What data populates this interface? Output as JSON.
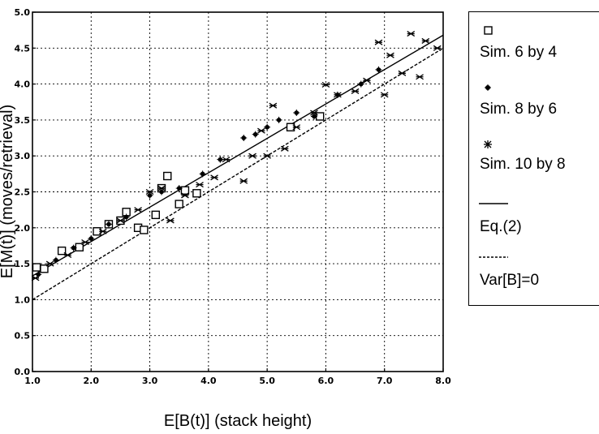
{
  "chart_data": {
    "type": "scatter",
    "xlabel": "E[B(t)] (stack height)",
    "ylabel": "E[M(t)] (moves/retrieval)",
    "xlim": [
      1.0,
      8.0
    ],
    "ylim": [
      0.0,
      5.0
    ],
    "x_ticks": [
      "1.0",
      "2.0",
      "3.0",
      "4.0",
      "5.0",
      "6.0",
      "7.0",
      "8.0"
    ],
    "y_ticks": [
      "0.0",
      "0.5",
      "1.0",
      "1.5",
      "2.0",
      "2.5",
      "3.0",
      "3.5",
      "4.0",
      "4.5",
      "5.0"
    ],
    "grid": true,
    "legend_position": "right",
    "series": [
      {
        "name": "Sim. 6 by 4",
        "marker": "square",
        "points": [
          [
            1.07,
            1.45
          ],
          [
            1.2,
            1.43
          ],
          [
            1.5,
            1.68
          ],
          [
            1.8,
            1.73
          ],
          [
            2.1,
            1.95
          ],
          [
            2.3,
            2.05
          ],
          [
            2.5,
            2.1
          ],
          [
            2.6,
            2.22
          ],
          [
            2.8,
            2.0
          ],
          [
            2.9,
            1.97
          ],
          [
            3.1,
            2.18
          ],
          [
            3.2,
            2.55
          ],
          [
            3.3,
            2.72
          ],
          [
            3.5,
            2.33
          ],
          [
            3.6,
            2.52
          ],
          [
            3.8,
            2.48
          ],
          [
            5.4,
            3.4
          ],
          [
            5.9,
            3.55
          ]
        ]
      },
      {
        "name": "Sim. 8 by 6",
        "marker": "dot",
        "points": [
          [
            1.1,
            1.35
          ],
          [
            1.4,
            1.55
          ],
          [
            1.7,
            1.72
          ],
          [
            2.0,
            1.85
          ],
          [
            2.3,
            2.05
          ],
          [
            2.6,
            2.15
          ],
          [
            3.0,
            2.45
          ],
          [
            3.2,
            2.5
          ],
          [
            3.5,
            2.55
          ],
          [
            3.9,
            2.75
          ],
          [
            4.2,
            2.95
          ],
          [
            4.6,
            3.25
          ],
          [
            4.8,
            3.3
          ],
          [
            5.0,
            3.4
          ],
          [
            5.2,
            3.5
          ],
          [
            5.5,
            3.6
          ],
          [
            5.8,
            3.55
          ],
          [
            6.2,
            3.85
          ],
          [
            6.6,
            4.0
          ],
          [
            6.9,
            4.2
          ]
        ]
      },
      {
        "name": "Sim. 10 by 8",
        "marker": "asterisk",
        "points": [
          [
            1.05,
            1.3
          ],
          [
            1.3,
            1.5
          ],
          [
            1.6,
            1.62
          ],
          [
            1.9,
            1.8
          ],
          [
            2.2,
            1.95
          ],
          [
            2.5,
            2.1
          ],
          [
            2.8,
            2.25
          ],
          [
            3.0,
            2.5
          ],
          [
            3.2,
            2.55
          ],
          [
            3.35,
            2.1
          ],
          [
            3.6,
            2.45
          ],
          [
            3.85,
            2.6
          ],
          [
            4.1,
            2.7
          ],
          [
            4.3,
            2.95
          ],
          [
            4.6,
            2.65
          ],
          [
            4.75,
            3.0
          ],
          [
            4.9,
            3.35
          ],
          [
            5.0,
            3.0
          ],
          [
            5.1,
            3.7
          ],
          [
            5.3,
            3.1
          ],
          [
            5.5,
            3.4
          ],
          [
            5.8,
            3.6
          ],
          [
            6.0,
            3.99
          ],
          [
            6.2,
            3.85
          ],
          [
            6.5,
            3.9
          ],
          [
            6.7,
            4.05
          ],
          [
            6.9,
            4.58
          ],
          [
            7.0,
            3.85
          ],
          [
            7.1,
            4.4
          ],
          [
            7.3,
            4.15
          ],
          [
            7.45,
            4.7
          ],
          [
            7.6,
            4.1
          ],
          [
            7.7,
            4.6
          ],
          [
            7.9,
            4.5
          ]
        ]
      },
      {
        "name": "Eq.(2)",
        "marker": "solid-line",
        "points": [
          [
            1.0,
            1.33
          ],
          [
            8.0,
            4.68
          ]
        ]
      },
      {
        "name": "Var[B]=0",
        "marker": "dashed-line",
        "points": [
          [
            1.0,
            1.0
          ],
          [
            8.0,
            4.5
          ]
        ]
      }
    ]
  }
}
